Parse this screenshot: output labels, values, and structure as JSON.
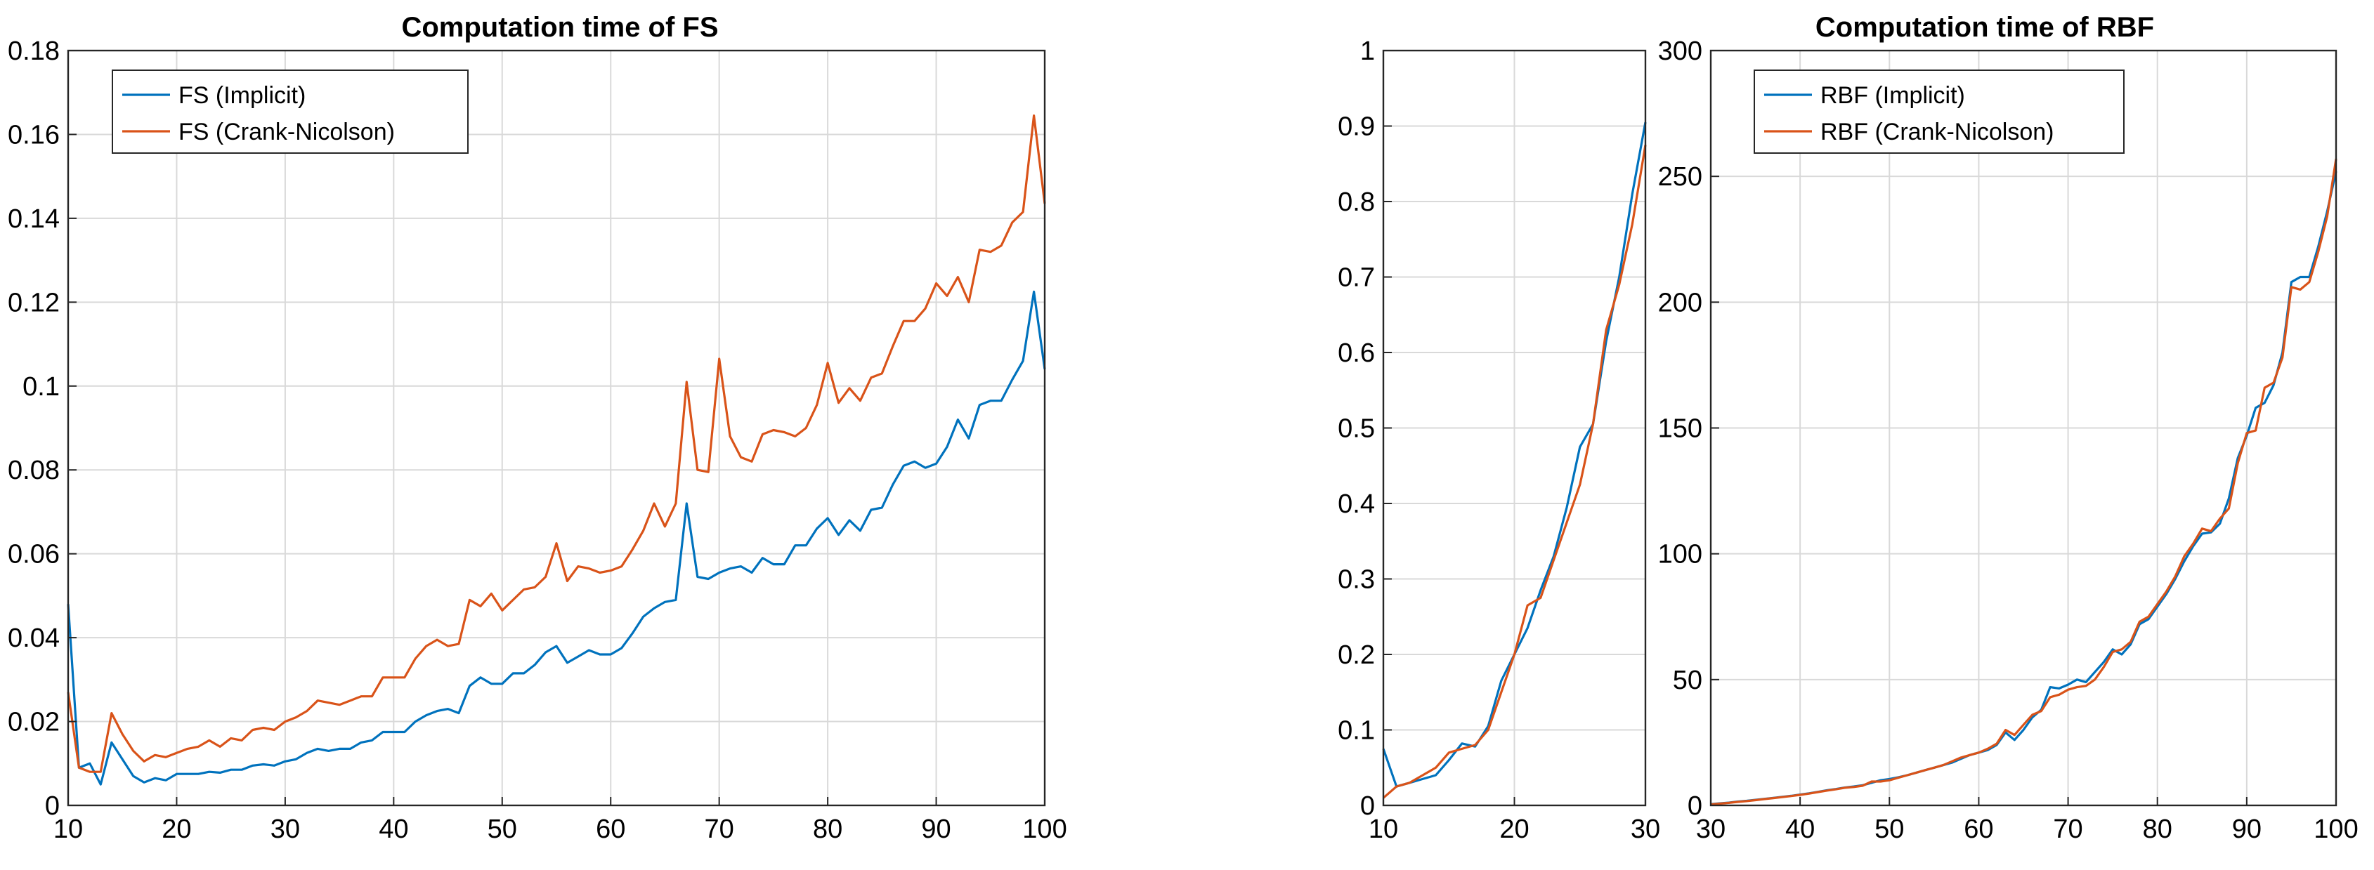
{
  "colors": {
    "implicit": "#0072BD",
    "crank_nicolson": "#D95319",
    "grid": "#d9d9d9",
    "axis": "#262626"
  },
  "chart_data": [
    {
      "type": "line",
      "title": "Computation time of FS",
      "xlabel": "",
      "ylabel": "",
      "xlim": [
        10,
        100
      ],
      "ylim": [
        0,
        0.18
      ],
      "xticks": [
        "10",
        "20",
        "30",
        "40",
        "50",
        "60",
        "70",
        "80",
        "90",
        "100"
      ],
      "yticks": [
        "0",
        "0.02",
        "0.04",
        "0.06",
        "0.08",
        "0.1",
        "0.12",
        "0.14",
        "0.16",
        "0.18"
      ],
      "grid": true,
      "legend_position": "top-left",
      "x": [
        10,
        11,
        12,
        13,
        14,
        15,
        16,
        17,
        18,
        19,
        20,
        21,
        22,
        23,
        24,
        25,
        26,
        27,
        28,
        29,
        30,
        31,
        32,
        33,
        34,
        35,
        36,
        37,
        38,
        39,
        40,
        41,
        42,
        43,
        44,
        45,
        46,
        47,
        48,
        49,
        50,
        51,
        52,
        53,
        54,
        55,
        56,
        57,
        58,
        59,
        60,
        61,
        62,
        63,
        64,
        65,
        66,
        67,
        68,
        69,
        70,
        71,
        72,
        73,
        74,
        75,
        76,
        77,
        78,
        79,
        80,
        81,
        82,
        83,
        84,
        85,
        86,
        87,
        88,
        89,
        90,
        91,
        92,
        93,
        94,
        95,
        96,
        97,
        98,
        99,
        100
      ],
      "series": [
        {
          "name": "FS (Implicit)",
          "color_key": "implicit",
          "values": [
            0.048,
            0.009,
            0.01,
            0.005,
            0.015,
            0.011,
            0.007,
            0.0055,
            0.0065,
            0.006,
            0.0075,
            0.0075,
            0.0075,
            0.008,
            0.0078,
            0.0085,
            0.0085,
            0.0095,
            0.0098,
            0.0095,
            0.0105,
            0.011,
            0.0125,
            0.0135,
            0.013,
            0.0135,
            0.0135,
            0.015,
            0.0155,
            0.0175,
            0.0175,
            0.0175,
            0.02,
            0.0215,
            0.0225,
            0.023,
            0.022,
            0.0285,
            0.0305,
            0.029,
            0.029,
            0.0315,
            0.0315,
            0.0335,
            0.0365,
            0.038,
            0.034,
            0.0355,
            0.037,
            0.036,
            0.036,
            0.0375,
            0.041,
            0.045,
            0.047,
            0.0485,
            0.049,
            0.072,
            0.0545,
            0.054,
            0.0555,
            0.0565,
            0.057,
            0.0555,
            0.059,
            0.0575,
            0.0575,
            0.062,
            0.062,
            0.066,
            0.0685,
            0.0645,
            0.068,
            0.0655,
            0.0705,
            0.071,
            0.0765,
            0.081,
            0.082,
            0.0805,
            0.0815,
            0.0855,
            0.092,
            0.0875,
            0.0955,
            0.0965,
            0.0965,
            0.1015,
            0.106,
            0.1225,
            0.104
          ]
        },
        {
          "name": "FS (Crank-Nicolson)",
          "color_key": "crank_nicolson",
          "values": [
            0.027,
            0.009,
            0.008,
            0.008,
            0.022,
            0.017,
            0.013,
            0.0105,
            0.012,
            0.0115,
            0.0125,
            0.0135,
            0.014,
            0.0155,
            0.014,
            0.016,
            0.0155,
            0.018,
            0.0185,
            0.018,
            0.02,
            0.021,
            0.0225,
            0.025,
            0.0245,
            0.024,
            0.025,
            0.026,
            0.026,
            0.0305,
            0.0305,
            0.0305,
            0.035,
            0.038,
            0.0395,
            0.038,
            0.0385,
            0.049,
            0.0475,
            0.0505,
            0.0465,
            0.049,
            0.0515,
            0.052,
            0.0545,
            0.0625,
            0.0535,
            0.057,
            0.0565,
            0.0555,
            0.056,
            0.057,
            0.061,
            0.0655,
            0.072,
            0.0665,
            0.072,
            0.101,
            0.08,
            0.0795,
            0.1065,
            0.088,
            0.083,
            0.082,
            0.0885,
            0.0895,
            0.089,
            0.088,
            0.09,
            0.0955,
            0.1055,
            0.096,
            0.0995,
            0.0965,
            0.102,
            0.103,
            0.1095,
            0.1155,
            0.1155,
            0.1185,
            0.1245,
            0.1215,
            0.126,
            0.12,
            0.1325,
            0.132,
            0.1335,
            0.139,
            0.1415,
            0.1645,
            0.1435
          ]
        }
      ]
    },
    {
      "type": "line",
      "title": "",
      "xlabel": "",
      "ylabel": "",
      "xlim": [
        10,
        30
      ],
      "ylim": [
        0,
        1
      ],
      "xticks": [
        "10",
        "20",
        "30"
      ],
      "yticks": [
        "0",
        "0.1",
        "0.2",
        "0.3",
        "0.4",
        "0.5",
        "0.6",
        "0.7",
        "0.8",
        "0.9",
        "1"
      ],
      "grid": true,
      "x": [
        10,
        11,
        12,
        13,
        14,
        15,
        16,
        17,
        18,
        19,
        20,
        21,
        22,
        23,
        24,
        25,
        26,
        27,
        28,
        29,
        30
      ],
      "series": [
        {
          "name": "",
          "color_key": "implicit",
          "values": [
            0.075,
            0.025,
            0.03,
            0.035,
            0.04,
            0.06,
            0.082,
            0.078,
            0.105,
            0.165,
            0.2,
            0.235,
            0.285,
            0.33,
            0.395,
            0.475,
            0.505,
            0.615,
            0.7,
            0.81,
            0.905
          ]
        },
        {
          "name": "",
          "color_key": "crank_nicolson",
          "values": [
            0.01,
            0.025,
            0.03,
            0.04,
            0.05,
            0.07,
            0.075,
            0.08,
            0.1,
            0.15,
            0.2,
            0.265,
            0.275,
            0.325,
            0.375,
            0.425,
            0.505,
            0.63,
            0.69,
            0.77,
            0.875
          ]
        }
      ]
    },
    {
      "type": "line",
      "title": "Computation time of RBF",
      "xlabel": "",
      "ylabel": "",
      "xlim": [
        30,
        100
      ],
      "ylim": [
        0,
        300
      ],
      "xticks": [
        "30",
        "40",
        "50",
        "60",
        "70",
        "80",
        "90",
        "100"
      ],
      "yticks": [
        "0",
        "50",
        "100",
        "150",
        "200",
        "250",
        "300"
      ],
      "grid": true,
      "legend_position": "top-left",
      "x": [
        30,
        31,
        32,
        33,
        34,
        35,
        36,
        37,
        38,
        39,
        40,
        41,
        42,
        43,
        44,
        45,
        46,
        47,
        48,
        49,
        50,
        51,
        52,
        53,
        54,
        55,
        56,
        57,
        58,
        59,
        60,
        61,
        62,
        63,
        64,
        65,
        66,
        67,
        68,
        69,
        70,
        71,
        72,
        73,
        74,
        75,
        76,
        77,
        78,
        79,
        80,
        81,
        82,
        83,
        84,
        85,
        86,
        87,
        88,
        89,
        90,
        91,
        92,
        93,
        94,
        95,
        96,
        97,
        98,
        99,
        100
      ],
      "series": [
        {
          "name": "RBF (Implicit)",
          "color_key": "implicit",
          "values": [
            0.5,
            0.8,
            1.1,
            1.5,
            1.8,
            2.2,
            2.6,
            3.0,
            3.4,
            3.8,
            4.3,
            4.8,
            5.4,
            6.0,
            6.5,
            7.1,
            7.5,
            8.0,
            9.0,
            10.0,
            10.5,
            11.2,
            12.0,
            13.0,
            14.0,
            15.0,
            16.0,
            17.0,
            18.5,
            20.0,
            21.0,
            22.0,
            24.0,
            29.0,
            26.0,
            30.0,
            35.0,
            38.0,
            47.0,
            46.5,
            48.0,
            50.0,
            49.0,
            53.0,
            57.0,
            62.0,
            60.0,
            64.0,
            72.0,
            74.0,
            79.0,
            84.0,
            90.0,
            97.0,
            103.0,
            108.0,
            108.5,
            112.0,
            122.0,
            138.0,
            147.0,
            158.0,
            160.0,
            167.0,
            180.0,
            208.0,
            210.0,
            210.0,
            222.0,
            236.0,
            252.0
          ]
        },
        {
          "name": "RBF (Crank-Nicolson)",
          "color_key": "crank_nicolson",
          "values": [
            0.4,
            0.7,
            1.0,
            1.4,
            1.7,
            2.1,
            2.5,
            2.9,
            3.3,
            3.7,
            4.2,
            4.7,
            5.3,
            5.9,
            6.4,
            7.0,
            7.3,
            7.8,
            9.5,
            9.5,
            10.0,
            11.0,
            12.0,
            13.0,
            14.0,
            15.0,
            16.0,
            17.5,
            19.0,
            20.0,
            21.0,
            22.5,
            24.5,
            30.0,
            28.0,
            32.0,
            36.0,
            37.5,
            43.0,
            44.0,
            46.0,
            47.0,
            47.5,
            50.0,
            55.0,
            61.0,
            62.0,
            65.0,
            73.0,
            75.0,
            80.0,
            85.0,
            91.0,
            99.0,
            104.0,
            110.0,
            109.0,
            114.0,
            118.0,
            136.0,
            148.0,
            149.0,
            166.0,
            168.0,
            178.0,
            206.0,
            205.0,
            208.0,
            220.0,
            234.0,
            257.0
          ]
        }
      ]
    }
  ]
}
